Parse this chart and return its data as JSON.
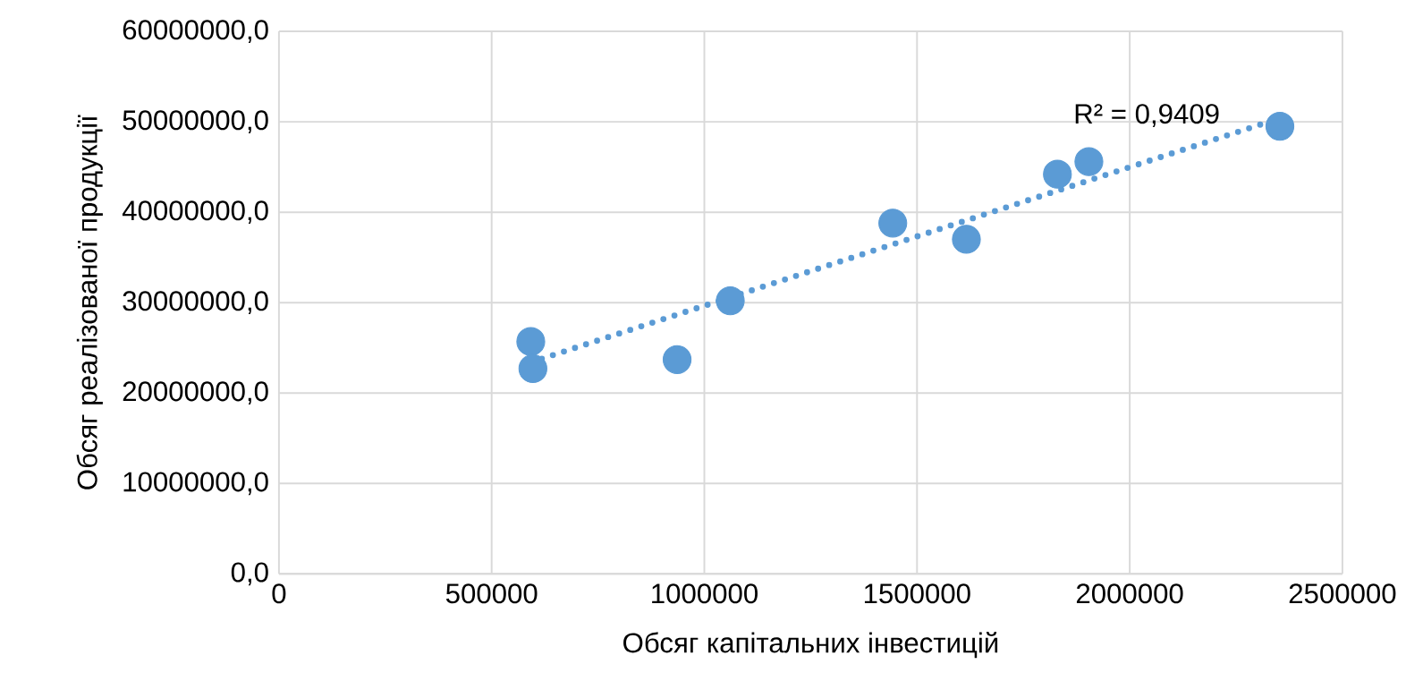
{
  "chart_data": {
    "type": "scatter",
    "xlabel": "Обсяг капітальних інвестицій",
    "ylabel": "Обсяг реалізованої продукції",
    "series": [
      {
        "marker": "circle",
        "color": "#5b9bd5",
        "x": [
          592000,
          597000,
          936000,
          1061000,
          1443000,
          1616000,
          1830000,
          1904000,
          2353000
        ],
        "values": [
          25700000,
          22700000,
          23700000,
          30200000,
          38800000,
          37000000,
          44200000,
          45600000,
          49500000
        ]
      },
      {
        "type": "line",
        "marker": "none",
        "line_style": "dotted",
        "color": "#5b9bd5",
        "x": [
          592000,
          2353000
        ],
        "values": [
          23400000,
          50400000
        ]
      }
    ],
    "annotations": [
      "R² = 0,9409"
    ],
    "xlim": [
      0,
      2500000
    ],
    "xticks": [
      0,
      500000,
      1000000,
      1500000,
      2000000,
      2500000
    ],
    "ylim": [
      0,
      60000000
    ],
    "yticks": [
      {
        "value": 0,
        "label": "0,0"
      },
      {
        "value": 10000000,
        "label": "10000000,0"
      },
      {
        "value": 20000000,
        "label": "20000000,0"
      },
      {
        "value": 30000000,
        "label": "30000000,0"
      },
      {
        "value": 40000000,
        "label": "40000000,0"
      },
      {
        "value": 50000000,
        "label": "50000000,0"
      },
      {
        "value": 60000000,
        "label": "60000000,0"
      }
    ],
    "grid": true
  }
}
